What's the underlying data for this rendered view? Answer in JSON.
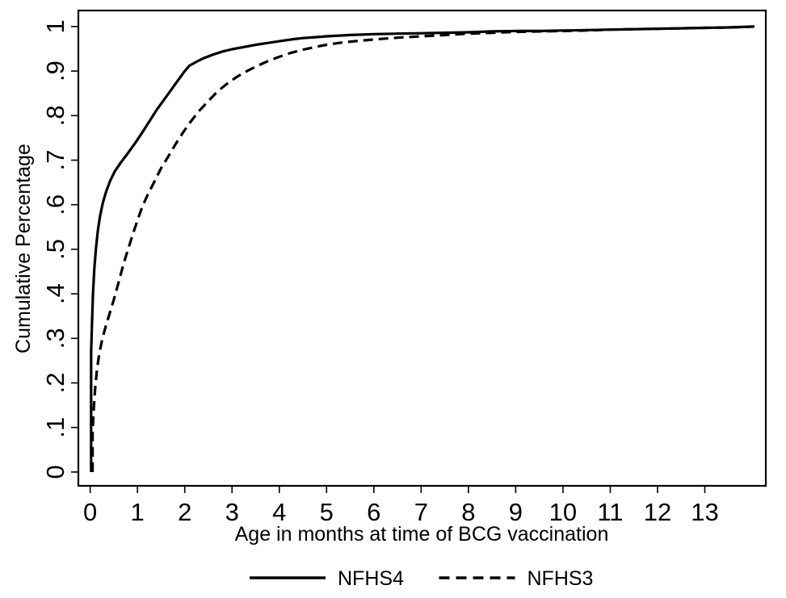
{
  "window": {
    "background": "#ffffff"
  },
  "chart_data": {
    "type": "line",
    "title": "",
    "xlabel": "Age in months at time of BCG vaccination",
    "ylabel": "Cumulative Percentage",
    "x_ticks": [
      0,
      1,
      2,
      3,
      4,
      5,
      6,
      7,
      8,
      9,
      10,
      11,
      12,
      13
    ],
    "y_tick_values": [
      0,
      0.1,
      0.2,
      0.3,
      0.4,
      0.5,
      0.6,
      0.7,
      0.8,
      0.9,
      1
    ],
    "y_tick_labels": [
      "0",
      ".1",
      ".2",
      ".3",
      ".4",
      ".5",
      ".6",
      ".7",
      ".8",
      ".9",
      "1"
    ],
    "xlim": [
      -0.25,
      14.29
    ],
    "ylim": [
      -0.031,
      1.036
    ],
    "grid": false,
    "frame": true,
    "colors": {
      "line": "#000000",
      "frame": "#000000",
      "background": "#ffffff"
    },
    "legend": {
      "position": "bottom-center"
    },
    "series": [
      {
        "name": "NFHS4",
        "line_style": "solid",
        "points": [
          [
            0.02,
            0
          ],
          [
            0.02,
            0.27
          ],
          [
            0.04,
            0.34
          ],
          [
            0.06,
            0.4
          ],
          [
            0.09,
            0.46
          ],
          [
            0.12,
            0.5
          ],
          [
            0.16,
            0.54
          ],
          [
            0.21,
            0.575
          ],
          [
            0.27,
            0.605
          ],
          [
            0.34,
            0.63
          ],
          [
            0.42,
            0.653
          ],
          [
            0.52,
            0.675
          ],
          [
            0.65,
            0.695
          ],
          [
            0.8,
            0.716
          ],
          [
            0.95,
            0.738
          ],
          [
            1.1,
            0.762
          ],
          [
            1.25,
            0.787
          ],
          [
            1.4,
            0.812
          ],
          [
            1.55,
            0.834
          ],
          [
            1.7,
            0.856
          ],
          [
            1.85,
            0.878
          ],
          [
            2.0,
            0.9
          ],
          [
            2.1,
            0.912
          ],
          [
            2.25,
            0.921
          ],
          [
            2.4,
            0.929
          ],
          [
            2.6,
            0.937
          ],
          [
            2.8,
            0.944
          ],
          [
            3.0,
            0.949
          ],
          [
            3.25,
            0.954
          ],
          [
            3.5,
            0.959
          ],
          [
            3.75,
            0.963
          ],
          [
            4.0,
            0.967
          ],
          [
            4.25,
            0.971
          ],
          [
            4.5,
            0.974
          ],
          [
            4.75,
            0.976
          ],
          [
            5.0,
            0.978
          ],
          [
            5.5,
            0.981
          ],
          [
            6.0,
            0.983
          ],
          [
            6.5,
            0.984
          ],
          [
            7.0,
            0.985
          ],
          [
            7.5,
            0.986
          ],
          [
            8.0,
            0.987
          ],
          [
            8.5,
            0.989
          ],
          [
            9.0,
            0.99
          ],
          [
            9.5,
            0.99
          ],
          [
            10.0,
            0.991
          ],
          [
            10.5,
            0.992
          ],
          [
            11.0,
            0.993
          ],
          [
            11.5,
            0.994
          ],
          [
            12.0,
            0.995
          ],
          [
            12.5,
            0.996
          ],
          [
            13.0,
            0.997
          ],
          [
            13.5,
            0.998
          ],
          [
            14.05,
            1.0
          ]
        ]
      },
      {
        "name": "NFHS3",
        "line_style": "dashed",
        "points": [
          [
            0.05,
            0
          ],
          [
            0.05,
            0.09
          ],
          [
            0.07,
            0.13
          ],
          [
            0.09,
            0.165
          ],
          [
            0.11,
            0.195
          ],
          [
            0.14,
            0.225
          ],
          [
            0.17,
            0.25
          ],
          [
            0.21,
            0.275
          ],
          [
            0.26,
            0.3
          ],
          [
            0.33,
            0.327
          ],
          [
            0.41,
            0.355
          ],
          [
            0.5,
            0.387
          ],
          [
            0.6,
            0.425
          ],
          [
            0.7,
            0.465
          ],
          [
            0.8,
            0.5
          ],
          [
            0.9,
            0.533
          ],
          [
            1.0,
            0.565
          ],
          [
            1.1,
            0.595
          ],
          [
            1.22,
            0.623
          ],
          [
            1.35,
            0.65
          ],
          [
            1.5,
            0.682
          ],
          [
            1.65,
            0.708
          ],
          [
            1.8,
            0.735
          ],
          [
            1.95,
            0.76
          ],
          [
            2.1,
            0.783
          ],
          [
            2.3,
            0.81
          ],
          [
            2.5,
            0.833
          ],
          [
            2.7,
            0.855
          ],
          [
            2.9,
            0.872
          ],
          [
            3.1,
            0.887
          ],
          [
            3.3,
            0.899
          ],
          [
            3.5,
            0.91
          ],
          [
            3.75,
            0.922
          ],
          [
            4.0,
            0.932
          ],
          [
            4.25,
            0.941
          ],
          [
            4.5,
            0.948
          ],
          [
            4.75,
            0.954
          ],
          [
            5.0,
            0.959
          ],
          [
            5.25,
            0.963
          ],
          [
            5.5,
            0.966
          ],
          [
            6.0,
            0.971
          ],
          [
            6.5,
            0.975
          ],
          [
            7.0,
            0.978
          ],
          [
            7.5,
            0.981
          ],
          [
            8.0,
            0.984
          ],
          [
            8.5,
            0.986
          ],
          [
            9.0,
            0.988
          ],
          [
            9.5,
            0.989
          ],
          [
            10.0,
            0.99
          ],
          [
            10.5,
            0.991
          ],
          [
            11.0,
            0.993
          ],
          [
            11.5,
            0.994
          ],
          [
            12.0,
            0.995
          ],
          [
            12.5,
            0.996
          ],
          [
            13.0,
            0.997
          ],
          [
            13.5,
            0.998
          ],
          [
            14.05,
            1.0
          ]
        ]
      }
    ]
  }
}
